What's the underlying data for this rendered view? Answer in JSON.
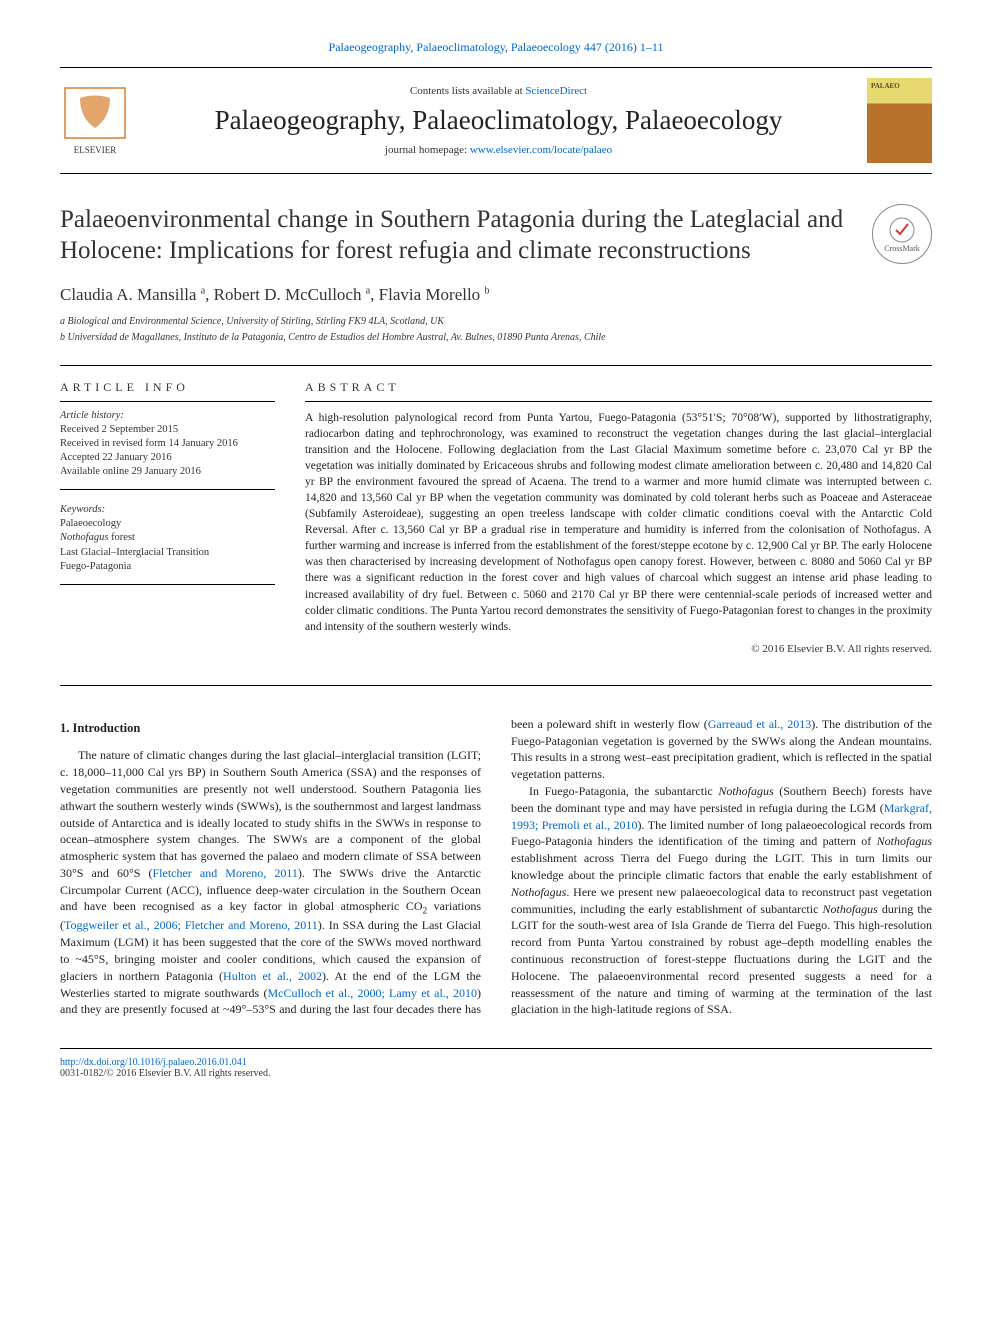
{
  "header": {
    "journal_ref_line": "Palaeogeography, Palaeoclimatology, Palaeoecology 447 (2016) 1–11",
    "contents_prefix": "Contents lists available at ",
    "contents_link": "ScienceDirect",
    "journal_name": "Palaeogeography, Palaeoclimatology, Palaeoecology",
    "homepage_prefix": "journal homepage: ",
    "homepage_link": "www.elsevier.com/locate/palaeo",
    "crossmark": "CrossMark"
  },
  "article": {
    "title": "Palaeoenvironmental change in Southern Patagonia during the Lateglacial and Holocene: Implications for forest refugia and climate reconstructions",
    "authors_html": "Claudia A. Mansilla <sup>a</sup>, Robert D. McCulloch <sup>a</sup>, Flavia Morello <sup>b</sup>",
    "affiliations": {
      "a": "a Biological and Environmental Science, University of Stirling, Stirling FK9 4LA, Scotland, UK",
      "b": "b Universidad de Magallanes, Instituto de la Patagonia, Centro de Estudios del Hombre Austral, Av. Bulnes, 01890 Punta Arenas, Chile"
    }
  },
  "info": {
    "heading": "ARTICLE INFO",
    "history_label": "Article history:",
    "history": [
      "Received 2 September 2015",
      "Received in revised form 14 January 2016",
      "Accepted 22 January 2016",
      "Available online 29 January 2016"
    ],
    "keywords_label": "Keywords:",
    "keywords": [
      "Palaeoecology",
      "Nothofagus forest",
      "Last Glacial–Interglacial Transition",
      "Fuego-Patagonia"
    ]
  },
  "abstract": {
    "heading": "ABSTRACT",
    "text": "A high-resolution palynological record from Punta Yartou, Fuego-Patagonia (53°51′S; 70°08′W), supported by lithostratigraphy, radiocarbon dating and tephrochronology, was examined to reconstruct the vegetation changes during the last glacial–interglacial transition and the Holocene. Following deglaciation from the Last Glacial Maximum sometime before c. 23,070 Cal yr BP the vegetation was initially dominated by Ericaceous shrubs and following modest climate amelioration between c. 20,480 and 14,820 Cal yr BP the environment favoured the spread of Acaena. The trend to a warmer and more humid climate was interrupted between c. 14,820 and 13,560 Cal yr BP when the vegetation community was dominated by cold tolerant herbs such as Poaceae and Asteraceae (Subfamily Asteroideae), suggesting an open treeless landscape with colder climatic conditions coeval with the Antarctic Cold Reversal. After c. 13,560 Cal yr BP a gradual rise in temperature and humidity is inferred from the colonisation of Nothofagus. A further warming and increase is inferred from the establishment of the forest/steppe ecotone by c. 12,900 Cal yr BP. The early Holocene was then characterised by increasing development of Nothofagus open canopy forest. However, between c. 8080 and 5060 Cal yr BP there was a significant reduction in the forest cover and high values of charcoal which suggest an intense arid phase leading to increased availability of dry fuel. Between c. 5060 and 2170 Cal yr BP there were centennial-scale periods of increased wetter and colder climatic conditions. The Punta Yartou record demonstrates the sensitivity of Fuego-Patagonian forest to changes in the proximity and intensity of the southern westerly winds.",
    "copyright": "© 2016 Elsevier B.V. All rights reserved."
  },
  "body": {
    "section1_heading": "1. Introduction",
    "p1": "The nature of climatic changes during the last glacial–interglacial transition (LGIT; c. 18,000–11,000 Cal yrs BP) in Southern South America (SSA) and the responses of vegetation communities are presently not well understood. Southern Patagonia lies athwart the southern westerly winds (SWWs), is the southernmost and largest landmass outside of Antarctica and is ideally located to study shifts in the SWWs in response to ocean–atmosphere system changes. The SWWs are a component of the global atmospheric system that has governed the palaeo and modern climate of SSA between 30°S and 60°S (",
    "c1": "Fletcher and Moreno, 2011",
    "p1b": "). The SWWs drive the Antarctic Circumpolar Current (ACC), influence deep-water circulation in the Southern Ocean and have been recognised as a key factor in global atmospheric CO",
    "p1c": " variations (",
    "c2": "Toggweiler et al., 2006; Fletcher and Moreno, 2011",
    "p1d": "). In SSA during the Last Glacial Maximum (LGM) it has been suggested that the core of the SWWs moved northward to ~45°S, bringing moister and cooler conditions, which caused the expansion of glaciers in northern Patagonia (",
    "c3": "Hulton et al., 2002",
    "p1e": "). At the end of the LGM the Westerlies started to migrate southwards (",
    "c4": "McCulloch et al., 2000; Lamy et al., 2010",
    "p1f": ") and they are presently focused at ",
    "p2a": "~49°–53°S and during the last four decades there has been a poleward shift in westerly flow (",
    "c5": "Garreaud et al., 2013",
    "p2b": "). The distribution of the Fuego-Patagonian vegetation is governed by the SWWs along the Andean mountains. This results in a strong west–east precipitation gradient, which is reflected in the spatial vegetation patterns.",
    "p3a": "In Fuego-Patagonia, the subantarctic ",
    "p3_noth": "Nothofagus",
    "p3b": " (Southern Beech) forests have been the dominant type and may have persisted in refugia during the LGM (",
    "c6": "Markgraf, 1993; Premoli et al., 2010",
    "p3c": "). The limited number of long palaeoecological records from Fuego-Patagonia hinders the identification of the timing and pattern of ",
    "p3d": " establishment across Tierra del Fuego during the LGIT. This in turn limits our knowledge about the principle climatic factors that enable the early establishment of ",
    "p3e": ". Here we present new palaeoecological data to reconstruct past vegetation communities, including the early establishment of subantarctic ",
    "p3f": " during the LGIT for the south-west area of Isla Grande de Tierra del Fuego. This high-resolution record from Punta Yartou constrained by robust age–depth modelling enables the continuous reconstruction of forest-steppe fluctuations during the LGIT and the Holocene. The palaeoenvironmental record presented suggests a need for a reassessment of the nature and timing of warming at the termination of the last glaciation in the high-latitude regions of SSA."
  },
  "footer": {
    "doi": "http://dx.doi.org/10.1016/j.palaeo.2016.01.041",
    "issn": "0031-0182/© 2016 Elsevier B.V. All rights reserved."
  },
  "colors": {
    "link": "#0066cc",
    "text": "#222222",
    "rule": "#000000"
  }
}
